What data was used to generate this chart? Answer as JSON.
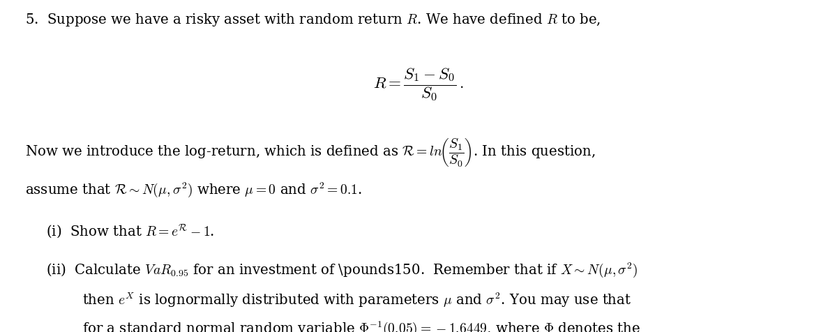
{
  "background_color": "#ffffff",
  "figsize": [
    12.0,
    4.77
  ],
  "dpi": 100,
  "text_color": "#000000",
  "font_size": 14.2
}
